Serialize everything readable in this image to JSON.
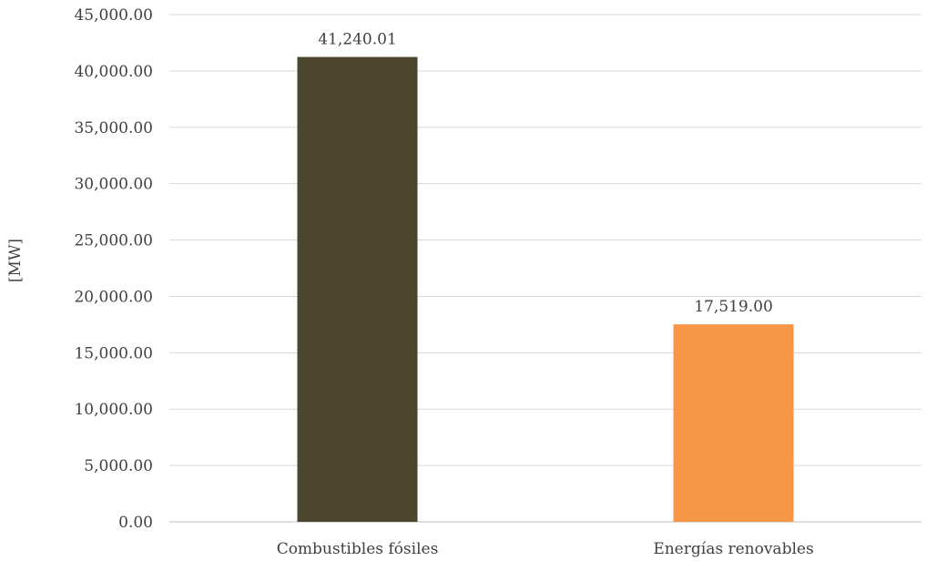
{
  "chart_data": {
    "type": "bar",
    "title": "",
    "xlabel": "",
    "ylabel": "[MW]",
    "ylim": [
      0,
      45000
    ],
    "y_ticks": [
      0,
      5000,
      10000,
      15000,
      20000,
      25000,
      30000,
      35000,
      40000,
      45000
    ],
    "y_tick_labels": [
      "0.00",
      "5,000.00",
      "10,000.00",
      "15,000.00",
      "20,000.00",
      "25,000.00",
      "30,000.00",
      "35,000.00",
      "40,000.00",
      "45,000.00"
    ],
    "grid": true,
    "legend": "none",
    "categories": [
      "Combustibles fósiles",
      "Energías renovables"
    ],
    "values": [
      41240.01,
      17519.0
    ],
    "data_labels": [
      "41,240.01",
      "17,519.00"
    ],
    "colors": [
      "#4a452c",
      "#f79646"
    ]
  }
}
